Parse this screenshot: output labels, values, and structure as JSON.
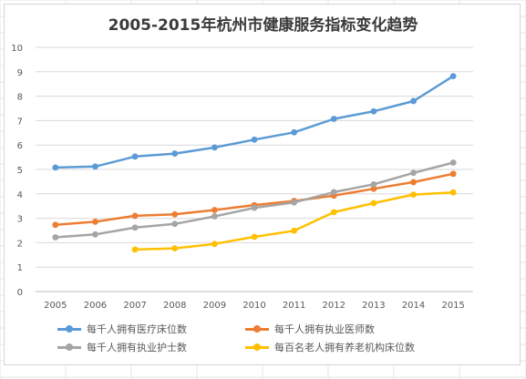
{
  "chart_data": {
    "type": "line",
    "title": "2005-2015年杭州市健康服务指标变化趋势",
    "xlabel": "",
    "ylabel": "",
    "categories": [
      "2005",
      "2006",
      "2007",
      "2008",
      "2009",
      "2010",
      "2011",
      "2012",
      "2013",
      "2014",
      "2015"
    ],
    "ylim": [
      0,
      10
    ],
    "yticks": [
      "0",
      "1",
      "2",
      "3",
      "4",
      "5",
      "6",
      "7",
      "8",
      "9",
      "10"
    ],
    "grid": true,
    "legend_position": "bottom",
    "series": [
      {
        "name": "每千人拥有医疗床位数",
        "color": "#5b9bd5",
        "values": [
          5.08,
          5.12,
          5.53,
          5.65,
          5.9,
          6.22,
          6.52,
          7.07,
          7.38,
          7.8,
          8.82
        ]
      },
      {
        "name": "每千人拥有执业医师数",
        "color": "#ed7d31",
        "values": [
          2.73,
          2.86,
          3.1,
          3.16,
          3.34,
          3.54,
          3.71,
          3.93,
          4.21,
          4.48,
          4.82
        ]
      },
      {
        "name": "每千人拥有执业护士数",
        "color": "#a5a5a5",
        "values": [
          2.22,
          2.34,
          2.62,
          2.77,
          3.08,
          3.43,
          3.65,
          4.07,
          4.39,
          4.86,
          5.28
        ]
      },
      {
        "name": "每百名老人拥有养老机构床位数",
        "color": "#ffc000",
        "values": [
          null,
          null,
          1.72,
          1.77,
          1.95,
          2.24,
          2.49,
          3.25,
          3.62,
          3.97,
          4.06
        ]
      }
    ]
  }
}
